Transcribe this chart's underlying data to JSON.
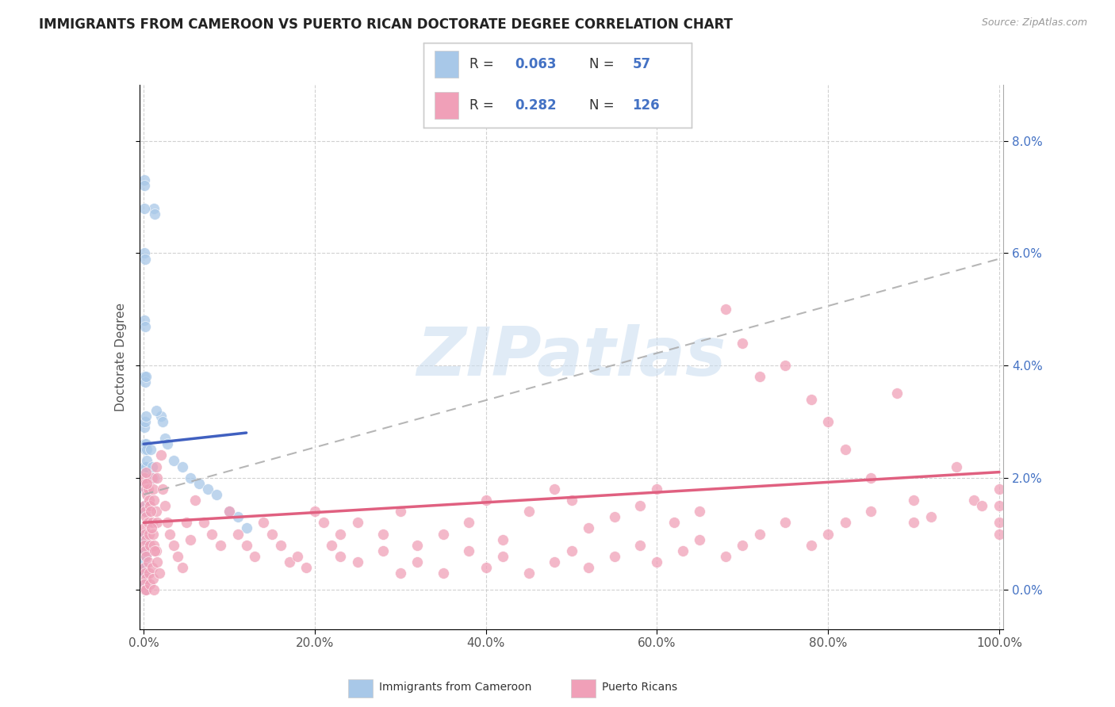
{
  "title": "IMMIGRANTS FROM CAMEROON VS PUERTO RICAN DOCTORATE DEGREE CORRELATION CHART",
  "source": "Source: ZipAtlas.com",
  "ylabel": "Doctorate Degree",
  "legend_label_1": "Immigrants from Cameroon",
  "legend_label_2": "Puerto Ricans",
  "r1": 0.063,
  "n1": 57,
  "r2": 0.282,
  "n2": 126,
  "watermark_text": "ZIPatlas",
  "color_blue": "#A8C8E8",
  "color_pink": "#F0A0B8",
  "line_blue": "#4060C0",
  "line_pink": "#E06080",
  "dash_color": "#AAAAAA",
  "background": "#FFFFFF",
  "grid_color": "#CCCCCC",
  "xlim": [
    -0.005,
    1.005
  ],
  "ylim": [
    -0.007,
    0.09
  ],
  "xticks": [
    0.0,
    0.2,
    0.4,
    0.6,
    0.8,
    1.0
  ],
  "yticks": [
    0.0,
    0.02,
    0.04,
    0.06,
    0.08
  ],
  "ytick_labels": [
    "0.0%",
    "2.0%",
    "4.0%",
    "6.0%",
    "8.0%"
  ],
  "xtick_labels": [
    "0.0%",
    "20.0%",
    "40.0%",
    "60.0%",
    "80.0%",
    "100.0%"
  ],
  "blue_line_x": [
    0.0,
    0.12
  ],
  "blue_line_y": [
    0.026,
    0.028
  ],
  "pink_line_x": [
    0.0,
    1.0
  ],
  "pink_line_y": [
    0.012,
    0.021
  ],
  "dash_line_x": [
    0.0,
    1.0
  ],
  "dash_line_y": [
    0.017,
    0.059
  ]
}
